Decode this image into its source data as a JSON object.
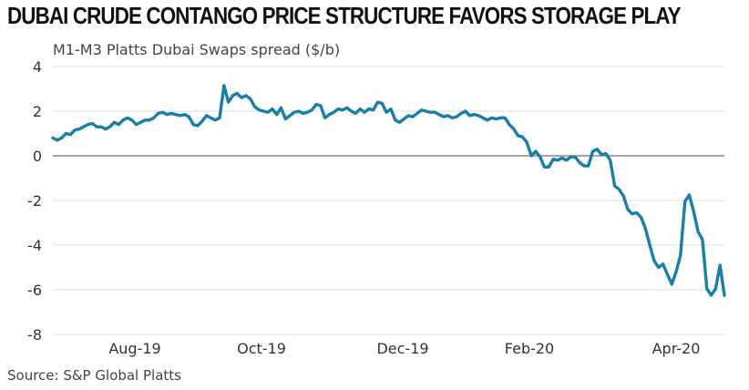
{
  "title": "DUBAI CRUDE CONTANGO PRICE STRUCTURE FAVORS STORAGE PLAY",
  "source": "Source: S&P Global Platts",
  "chart_data": {
    "type": "line",
    "title": "DUBAI CRUDE CONTANGO PRICE STRUCTURE FAVORS STORAGE PLAY",
    "ylabel": "M1-M3 Platts Dubai Swaps spread ($/b)",
    "xlabel": "",
    "ylim": [
      -8,
      4
    ],
    "yticks": [
      4,
      2,
      0,
      -2,
      -4,
      -6,
      -8
    ],
    "xtick_labels": [
      "Aug-19",
      "Oct-19",
      "Dec-19",
      "Feb-20",
      "Apr-20"
    ],
    "grid": "horizontal",
    "legend": "none",
    "colors": {
      "line": "#1a7fa8",
      "zero": "#888888",
      "grid": "#dddddd"
    },
    "series": [
      {
        "values": [
          0.8,
          0.7,
          0.8,
          1.0,
          0.95,
          1.15,
          1.2,
          1.3,
          1.4,
          1.45,
          1.3,
          1.3,
          1.2,
          1.3,
          1.5,
          1.4,
          1.6,
          1.7,
          1.6,
          1.4,
          1.5,
          1.6,
          1.6,
          1.7,
          1.9,
          1.95,
          1.85,
          1.9,
          1.85,
          1.8,
          1.85,
          1.75,
          1.4,
          1.35,
          1.55,
          1.8,
          1.7,
          1.6,
          1.7,
          3.15,
          2.4,
          2.7,
          2.8,
          2.6,
          2.7,
          2.55,
          2.2,
          2.05,
          2.0,
          1.95,
          2.1,
          1.85,
          2.15,
          1.65,
          1.8,
          1.95,
          2.0,
          1.9,
          1.95,
          2.05,
          2.3,
          2.25,
          1.7,
          1.85,
          1.95,
          2.1,
          2.05,
          2.15,
          2.0,
          1.9,
          2.1,
          1.95,
          2.1,
          2.05,
          2.4,
          2.35,
          1.95,
          2.1,
          1.6,
          1.5,
          1.65,
          1.8,
          1.75,
          1.9,
          2.05,
          2.0,
          1.95,
          1.95,
          1.85,
          1.75,
          1.8,
          1.7,
          1.75,
          1.9,
          2.0,
          1.8,
          1.85,
          1.8,
          1.7,
          1.6,
          1.7,
          1.65,
          1.7,
          1.7,
          1.4,
          1.2,
          0.9,
          0.85,
          0.6,
          0.0,
          0.2,
          -0.05,
          -0.5,
          -0.5,
          -0.15,
          -0.2,
          -0.1,
          -0.2,
          -0.05,
          -0.05,
          -0.3,
          -0.45,
          -0.45,
          0.2,
          0.3,
          0.05,
          0.1,
          -0.2,
          -1.35,
          -1.5,
          -1.8,
          -2.4,
          -2.6,
          -2.55,
          -2.75,
          -3.25,
          -4.0,
          -4.7,
          -5.0,
          -4.85,
          -5.3,
          -5.75,
          -5.2,
          -4.45,
          -2.05,
          -1.75,
          -2.5,
          -3.4,
          -3.75,
          -5.95,
          -6.25,
          -5.95,
          -4.9,
          -6.25
        ]
      }
    ]
  }
}
